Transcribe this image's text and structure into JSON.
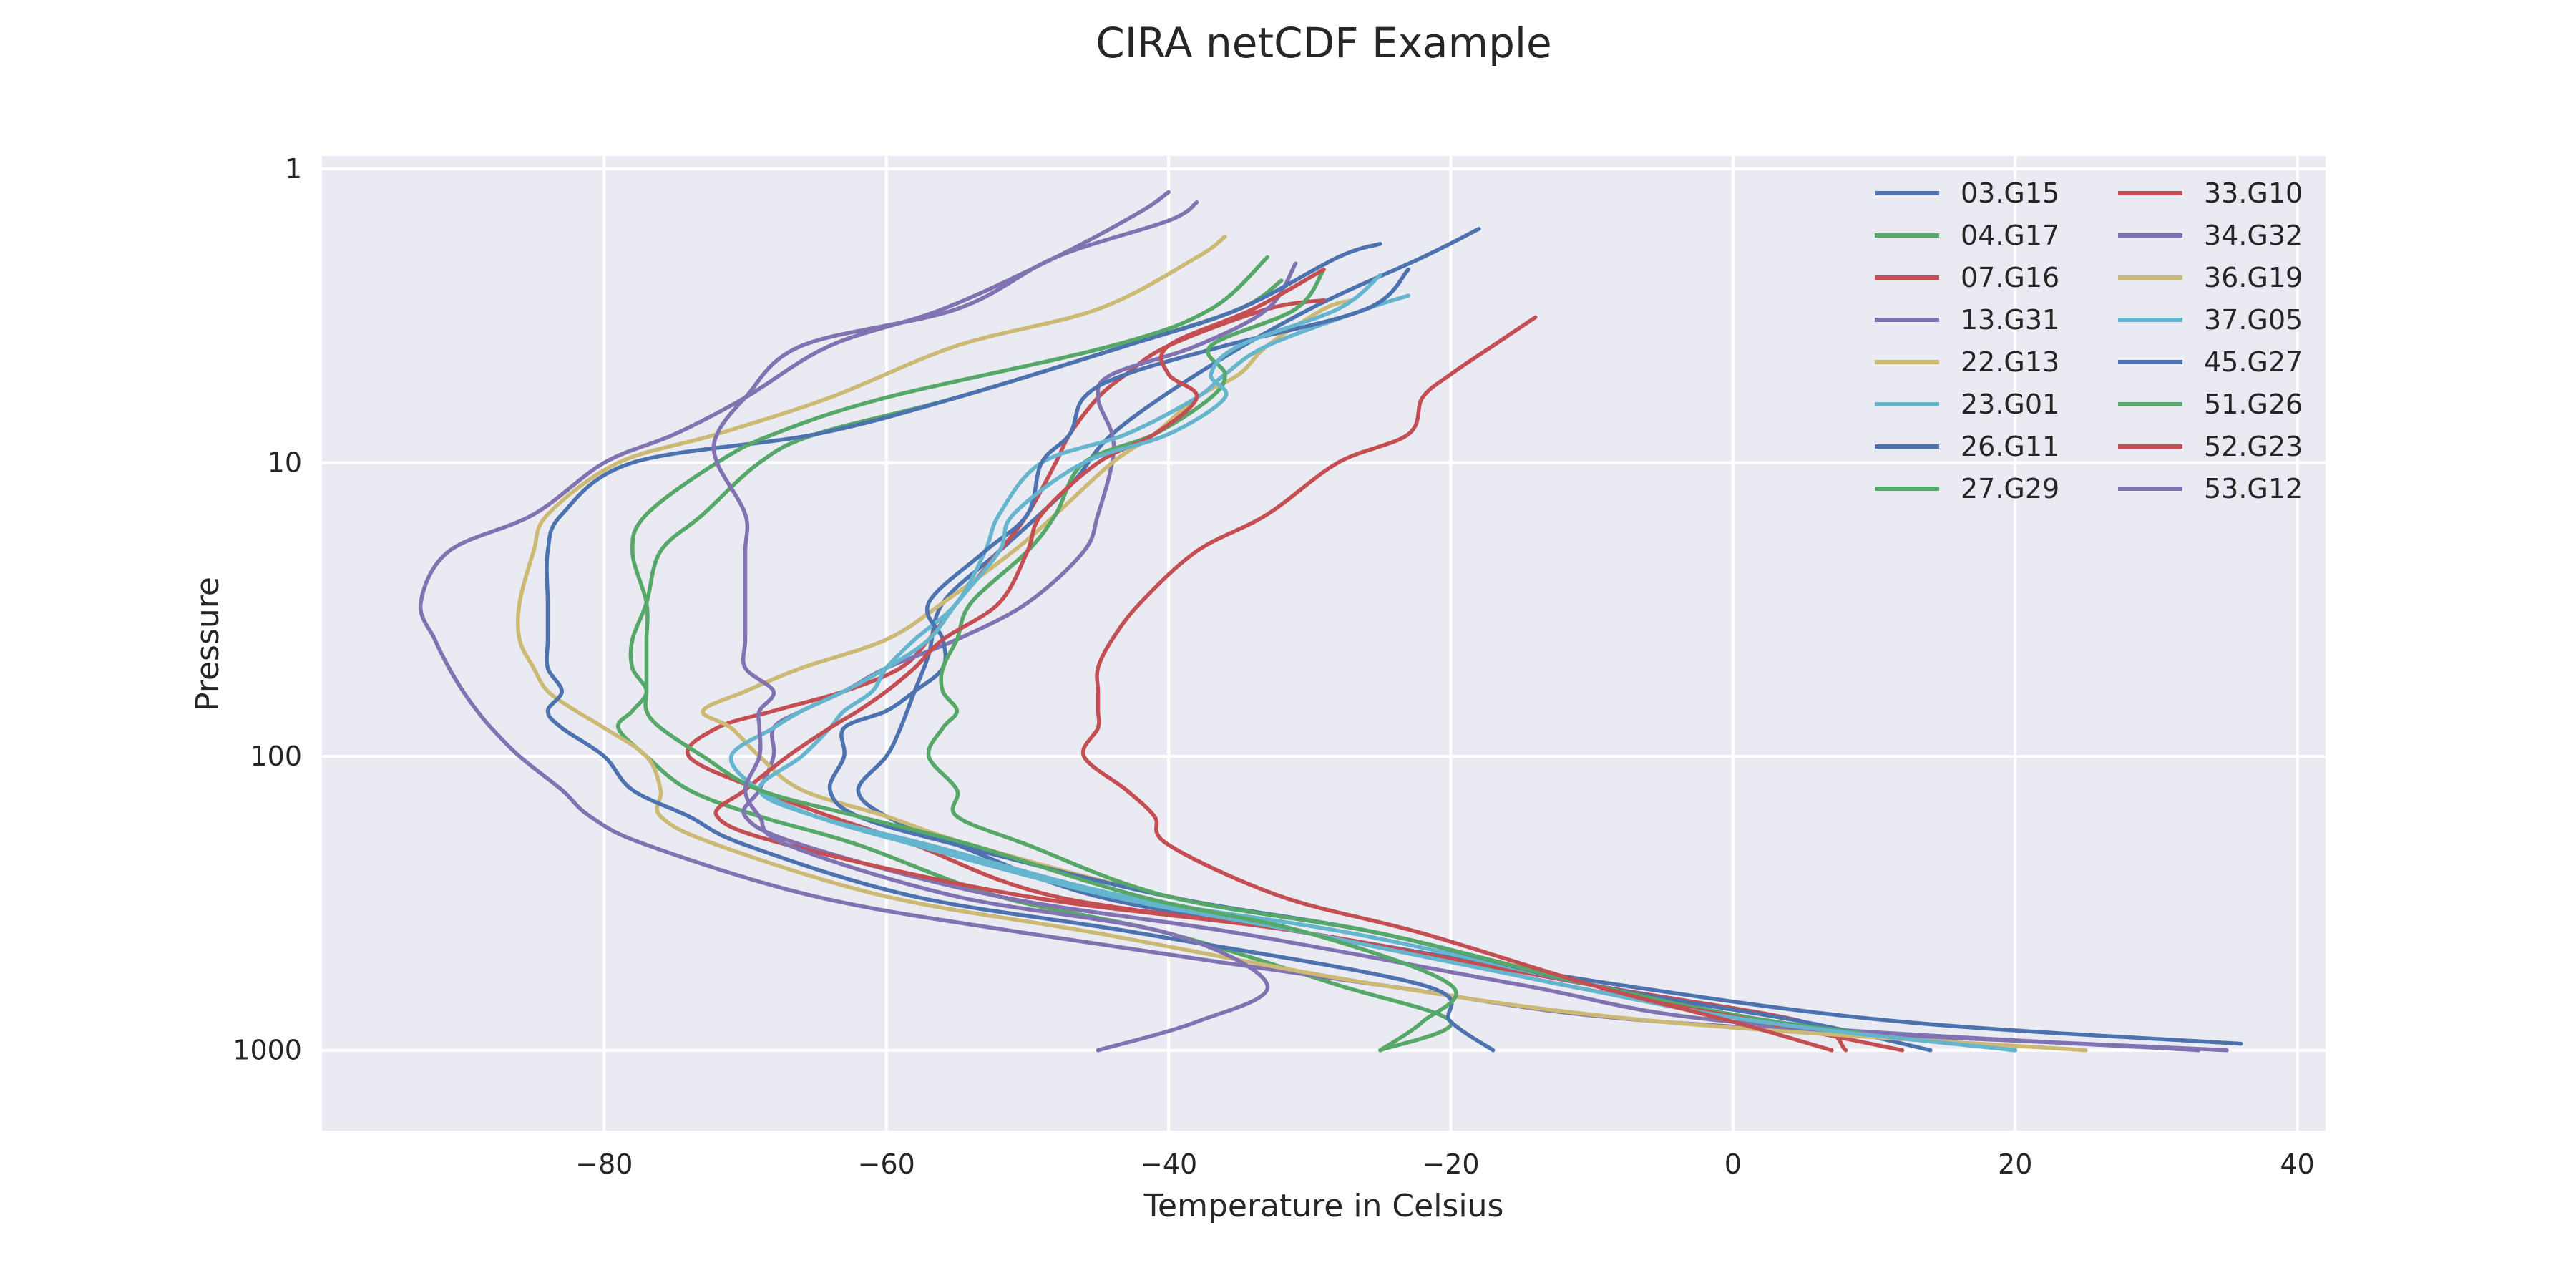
{
  "chart_data": {
    "type": "line",
    "title": "CIRA netCDF Example",
    "xlabel": "Temperature in Celsius",
    "ylabel": "Pressure",
    "xlim": [
      -100,
      42
    ],
    "ylim_log": [
      1,
      1500
    ],
    "y_scale": "log",
    "y_inverted": true,
    "grid": true,
    "legend_position": "top-right",
    "legend_columns": 2,
    "x_ticks": [
      "−80",
      "−60",
      "−40",
      "−20",
      "0",
      "20",
      "40"
    ],
    "x_tick_values": [
      -80,
      -60,
      -40,
      -20,
      0,
      20,
      40
    ],
    "y_ticks": [
      "1",
      "10",
      "100",
      "1000"
    ],
    "y_tick_values": [
      1,
      10,
      100,
      1000
    ],
    "pressure_levels": [
      1.3,
      2,
      3,
      4,
      6,
      8,
      10,
      15,
      20,
      30,
      40,
      50,
      60,
      70,
      80,
      100,
      130,
      160,
      200,
      300,
      400,
      600,
      800,
      1000
    ],
    "series": [
      {
        "name": "03.G15",
        "color": "#4c72b0",
        "pressure": [
          1.6,
          2,
          3,
          5,
          8,
          12,
          20,
          30,
          45,
          60,
          80,
          100,
          130,
          160,
          200,
          300,
          400,
          600,
          800,
          950
        ],
        "temperature": [
          -18,
          -22,
          -30,
          -38,
          -44,
          -47,
          -52,
          -56,
          -57,
          -58,
          -59,
          -60,
          -62,
          -60,
          -55,
          -45,
          -30,
          -8,
          12,
          36
        ]
      },
      {
        "name": "04.G17",
        "color": "#55a868",
        "pressure": [
          2.4,
          3,
          4,
          6,
          8,
          10,
          15,
          20,
          30,
          40,
          50,
          60,
          70,
          80,
          100,
          130,
          160,
          200,
          300,
          400,
          600,
          800,
          1000
        ],
        "temperature": [
          -32,
          -35,
          -43,
          -55,
          -65,
          -69,
          -73,
          -76,
          -77,
          -78,
          -78,
          -77,
          -78,
          -79,
          -77,
          -74,
          -69,
          -62,
          -52,
          -40,
          -28,
          -20,
          -25
        ]
      },
      {
        "name": "07.G16",
        "color": "#c44e52",
        "pressure": [
          2.8,
          3,
          4,
          5,
          6,
          8,
          10,
          15,
          20,
          30,
          40,
          50,
          60,
          70,
          80,
          100,
          130,
          160,
          200,
          300,
          400,
          600,
          800,
          1000
        ],
        "temperature": [
          -29,
          -33,
          -40,
          -43,
          -45,
          -47,
          -48,
          -50,
          -52,
          -55,
          -57,
          -59,
          -63,
          -68,
          -72,
          -74,
          -69,
          -64,
          -58,
          -48,
          -30,
          -10,
          5,
          8
        ]
      },
      {
        "name": "13.G31",
        "color": "#8172b2",
        "pressure": [
          2.1,
          3,
          4,
          5,
          6,
          8,
          10,
          15,
          20,
          30,
          40,
          50,
          60,
          70,
          80,
          100,
          130,
          160,
          200,
          300,
          400,
          600,
          800,
          1000
        ],
        "temperature": [
          -31,
          -33,
          -38,
          -44,
          -45,
          -44,
          -44,
          -45,
          -46,
          -50,
          -55,
          -60,
          -63,
          -66,
          -68,
          -68,
          -69,
          -70,
          -66,
          -52,
          -35,
          -15,
          0,
          33
        ]
      },
      {
        "name": "22.G13",
        "color": "#ccb974",
        "pressure": [
          2.8,
          3,
          4,
          5,
          6,
          8,
          10,
          15,
          20,
          30,
          40,
          50,
          60,
          70,
          80,
          100,
          130,
          160,
          200,
          300,
          400,
          600,
          800,
          1000
        ],
        "temperature": [
          -27,
          -29,
          -33,
          -35,
          -38,
          -41,
          -44,
          -48,
          -51,
          -56,
          -60,
          -66,
          -70,
          -73,
          -71,
          -69,
          -66,
          -60,
          -54,
          -40,
          -25,
          -10,
          3,
          20
        ]
      },
      {
        "name": "23.G01",
        "color": "#64b5cd",
        "pressure": [
          2.7,
          3,
          4,
          5,
          6,
          8,
          10,
          15,
          20,
          30,
          40,
          50,
          60,
          70,
          80,
          100,
          130,
          160,
          200,
          300,
          400,
          600,
          800,
          1000
        ],
        "temperature": [
          -23,
          -26,
          -33,
          -36,
          -38,
          -43,
          -49,
          -52,
          -53,
          -55,
          -58,
          -60,
          -61,
          -63,
          -64,
          -66,
          -69,
          -65,
          -57,
          -43,
          -27,
          -10,
          3,
          20
        ]
      },
      {
        "name": "26.G11",
        "color": "#4c72b0",
        "pressure": [
          2.2,
          3,
          4,
          5,
          6,
          8,
          10,
          15,
          20,
          30,
          40,
          50,
          60,
          70,
          80,
          100,
          130,
          160,
          200,
          300,
          400,
          600,
          800,
          1000
        ],
        "temperature": [
          -23,
          -26,
          -36,
          -43,
          -46,
          -47,
          -49,
          -50,
          -53,
          -57,
          -56,
          -56,
          -58,
          -60,
          -63,
          -63,
          -64,
          -62,
          -55,
          -40,
          -25,
          -10,
          5,
          14
        ]
      },
      {
        "name": "27.G29",
        "color": "#55a868",
        "pressure": [
          2.2,
          3,
          4,
          5,
          6,
          8,
          10,
          15,
          20,
          30,
          40,
          50,
          60,
          70,
          80,
          100,
          130,
          160,
          200,
          300,
          400,
          600,
          800,
          1000
        ],
        "temperature": [
          -29,
          -31,
          -37,
          -36,
          -37,
          -41,
          -46,
          -48,
          -50,
          -54,
          -55,
          -56,
          -56,
          -55,
          -56,
          -57,
          -55,
          -55,
          -50,
          -40,
          -25,
          -10,
          3,
          20
        ]
      },
      {
        "name": "33.G10",
        "color": "#c44e52",
        "pressure": [
          2.2,
          3,
          4,
          5,
          6,
          8,
          10,
          15,
          20,
          30,
          40,
          50,
          60,
          70,
          80,
          100,
          130,
          160,
          200,
          300,
          400,
          600,
          800,
          1000
        ],
        "temperature": [
          -29,
          -34,
          -40,
          -40,
          -38,
          -41,
          -45,
          -49,
          -50,
          -52,
          -56,
          -58,
          -60,
          -62,
          -64,
          -67,
          -70,
          -72,
          -67,
          -50,
          -30,
          -12,
          2,
          12
        ]
      },
      {
        "name": "34.G32",
        "color": "#8172b2",
        "pressure": [
          1.2,
          1.4,
          2,
          3,
          4,
          6,
          8,
          10,
          15,
          20,
          30,
          40,
          50,
          60,
          70,
          80,
          100,
          130,
          160,
          200,
          300,
          400,
          600,
          800,
          1000
        ],
        "temperature": [
          -40,
          -42,
          -48,
          -56,
          -64,
          -70,
          -75,
          -80,
          -85,
          -91,
          -93,
          -92,
          -91,
          -90,
          -89,
          -88,
          -86,
          -83,
          -81,
          -77,
          -65,
          -50,
          -25,
          -5,
          35
        ]
      },
      {
        "name": "36.G19",
        "color": "#ccb974",
        "pressure": [
          1.7,
          2,
          3,
          4,
          6,
          8,
          10,
          15,
          20,
          30,
          40,
          50,
          60,
          70,
          80,
          100,
          130,
          160,
          200,
          300,
          400,
          600,
          800,
          1000
        ],
        "temperature": [
          -36,
          -38,
          -45,
          -55,
          -64,
          -72,
          -79,
          -84,
          -85,
          -86,
          -86,
          -85,
          -84,
          -82,
          -80,
          -77,
          -76,
          -76,
          -72,
          -60,
          -45,
          -25,
          -5,
          25
        ]
      },
      {
        "name": "37.G05",
        "color": "#64b5cd",
        "pressure": [
          2.3,
          3,
          4,
          5,
          6,
          8,
          10,
          15,
          20,
          30,
          40,
          50,
          60,
          70,
          80,
          100,
          130,
          160,
          200,
          300,
          400,
          600,
          800,
          1000
        ],
        "temperature": [
          -25,
          -28,
          -35,
          -37,
          -36,
          -40,
          -46,
          -51,
          -52,
          -55,
          -57,
          -60,
          -63,
          -66,
          -68,
          -71,
          -69,
          -65,
          -58,
          -44,
          -30,
          -12,
          2,
          20
        ]
      },
      {
        "name": "45.G27",
        "color": "#4c72b0",
        "pressure": [
          1.8,
          2,
          3,
          4,
          6,
          8,
          10,
          15,
          20,
          30,
          40,
          50,
          60,
          70,
          80,
          100,
          130,
          160,
          200,
          300,
          400,
          600,
          800,
          1000
        ],
        "temperature": [
          -25,
          -28,
          -35,
          -43,
          -55,
          -65,
          -78,
          -83,
          -84,
          -84,
          -84,
          -84,
          -83,
          -84,
          -83,
          -80,
          -78,
          -74,
          -70,
          -58,
          -42,
          -22,
          -20,
          -17
        ]
      },
      {
        "name": "51.G26",
        "color": "#55a868",
        "pressure": [
          2.0,
          3,
          4,
          6,
          8,
          10,
          15,
          20,
          30,
          40,
          50,
          60,
          70,
          80,
          100,
          130,
          160,
          200,
          300,
          400,
          600,
          800,
          1000
        ],
        "temperature": [
          -33,
          -37,
          -44,
          -60,
          -68,
          -72,
          -77,
          -78,
          -77,
          -77,
          -77,
          -77,
          -77,
          -76,
          -73,
          -69,
          -62,
          -54,
          -42,
          -30,
          -20,
          -22,
          -25
        ]
      },
      {
        "name": "52.G23",
        "color": "#c44e52",
        "pressure": [
          3.2,
          4,
          5,
          6,
          8,
          10,
          15,
          20,
          30,
          40,
          50,
          60,
          70,
          80,
          100,
          130,
          160,
          200,
          300,
          400,
          600,
          800,
          1000
        ],
        "temperature": [
          -14,
          -17,
          -20,
          -22,
          -23,
          -28,
          -33,
          -38,
          -42,
          -44,
          -45,
          -45,
          -45,
          -45,
          -46,
          -43,
          -41,
          -40,
          -32,
          -22,
          -10,
          0,
          7
        ]
      },
      {
        "name": "53.G12",
        "color": "#8172b2",
        "pressure": [
          1.3,
          1.5,
          2,
          3,
          4,
          6,
          8,
          10,
          15,
          20,
          30,
          40,
          50,
          60,
          70,
          80,
          100,
          130,
          160,
          200,
          300,
          400,
          600,
          800,
          1000
        ],
        "temperature": [
          -38,
          -40,
          -48,
          -55,
          -66,
          -70,
          -72,
          -72,
          -70,
          -70,
          -70,
          -70,
          -70,
          -68,
          -69,
          -69,
          -69,
          -70,
          -69,
          -67,
          -55,
          -40,
          -33,
          -38,
          -45
        ]
      }
    ]
  }
}
